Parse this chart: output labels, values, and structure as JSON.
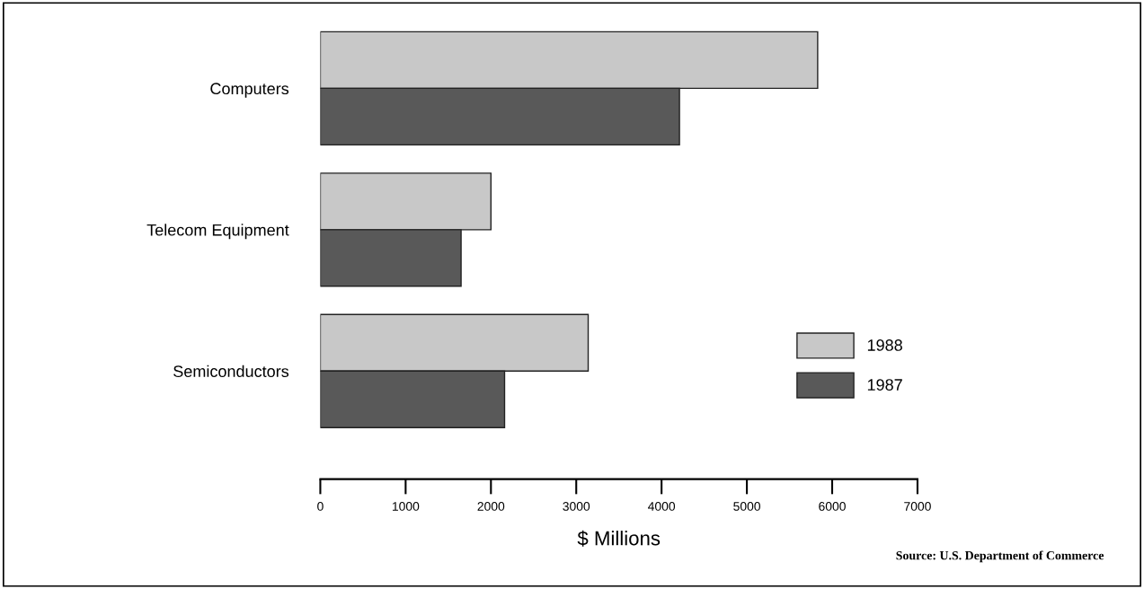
{
  "chart_data": {
    "type": "bar",
    "orientation": "horizontal",
    "xlabel": "$ Millions",
    "categories": [
      "Computers",
      "Telecom Equipment",
      "Semiconductors"
    ],
    "series": [
      {
        "name": "1988",
        "color": "#c8c8c8",
        "values": [
          5830,
          2000,
          3140
        ]
      },
      {
        "name": "1987",
        "color": "#595959",
        "values": [
          4210,
          1650,
          2160
        ]
      }
    ],
    "xlim": [
      0,
      7000
    ],
    "xticks": [
      0,
      1000,
      2000,
      3000,
      4000,
      5000,
      6000,
      7000
    ],
    "grid": false,
    "legend": "right",
    "annotations": [
      "Source: U.S. Department of Commerce"
    ]
  }
}
